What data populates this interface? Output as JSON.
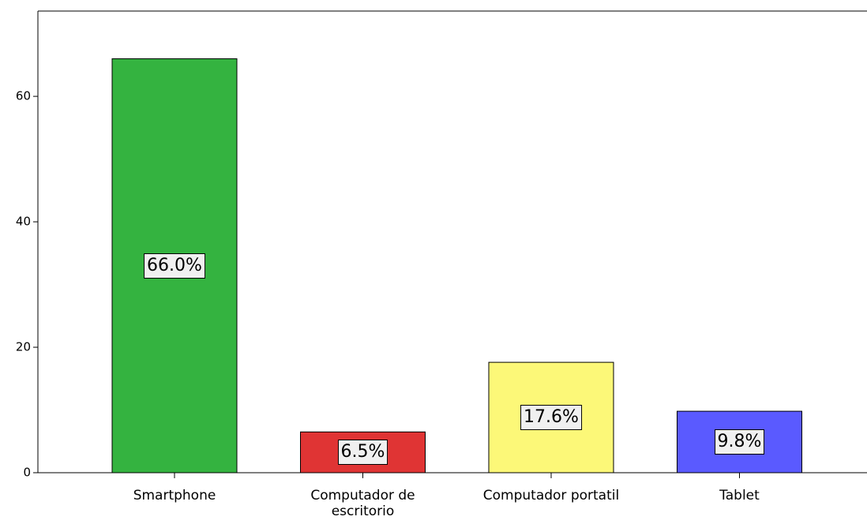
{
  "chart_data": {
    "type": "bar",
    "categories": [
      "Smartphone",
      "Computador de escritorio",
      "Computador portatil",
      "Tablet"
    ],
    "values": [
      66.0,
      6.5,
      17.6,
      9.8
    ],
    "value_labels": [
      "66.0%",
      "6.5%",
      "17.6%",
      "9.8%"
    ],
    "colors": [
      "#34b340",
      "#e03434",
      "#fcf878",
      "#5a5aff"
    ],
    "ylim": [
      0,
      73.6
    ],
    "yticks": [
      0,
      20,
      40,
      60
    ]
  }
}
